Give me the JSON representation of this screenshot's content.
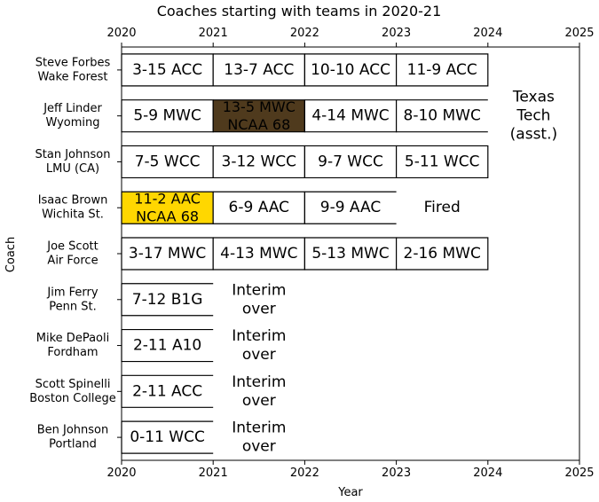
{
  "chart_data": {
    "type": "table",
    "title": "Coaches starting with teams in 2020-21",
    "xlabel": "Year",
    "ylabel": "Coach",
    "xlim": [
      2020,
      2025
    ],
    "xticks": [
      2020,
      2021,
      2022,
      2023,
      2024,
      2025
    ],
    "coaches": [
      {
        "name": "Steve Forbes",
        "team": "Wake Forest",
        "seasons": [
          {
            "start": 2020,
            "text": [
              "3-15 ACC"
            ]
          },
          {
            "start": 2021,
            "text": [
              "13-7 ACC"
            ]
          },
          {
            "start": 2022,
            "text": [
              "10-10 ACC"
            ]
          },
          {
            "start": 2023,
            "text": [
              "11-9 ACC"
            ]
          }
        ],
        "notes": []
      },
      {
        "name": "Jeff Linder",
        "team": "Wyoming",
        "seasons": [
          {
            "start": 2020,
            "text": [
              "5-9 MWC"
            ]
          },
          {
            "start": 2021,
            "text": [
              "13-5 MWC",
              "NCAA 68"
            ],
            "highlight": "#4f3a1d",
            "text_color": "#ffffff"
          },
          {
            "start": 2022,
            "text": [
              "4-14 MWC"
            ]
          },
          {
            "start": 2023,
            "text": [
              "8-10 MWC"
            ],
            "open_right": true
          }
        ],
        "notes": [
          {
            "at": 2024.5,
            "text": [
              "Texas",
              "Tech",
              "(asst.)"
            ]
          }
        ]
      },
      {
        "name": "Stan Johnson",
        "team": "LMU (CA)",
        "seasons": [
          {
            "start": 2020,
            "text": [
              "7-5 WCC"
            ]
          },
          {
            "start": 2021,
            "text": [
              "3-12 WCC"
            ]
          },
          {
            "start": 2022,
            "text": [
              "9-7 WCC"
            ]
          },
          {
            "start": 2023,
            "text": [
              "5-11 WCC"
            ]
          }
        ],
        "notes": []
      },
      {
        "name": "Isaac Brown",
        "team": "Wichita St.",
        "seasons": [
          {
            "start": 2020,
            "text": [
              "11-2 AAC",
              "NCAA 68"
            ],
            "highlight": "#ffd700"
          },
          {
            "start": 2021,
            "text": [
              "6-9 AAC"
            ]
          },
          {
            "start": 2022,
            "text": [
              "9-9 AAC"
            ],
            "open_right": true
          }
        ],
        "notes": [
          {
            "at": 2023.5,
            "text": [
              "Fired"
            ]
          }
        ]
      },
      {
        "name": "Joe Scott",
        "team": "Air Force",
        "seasons": [
          {
            "start": 2020,
            "text": [
              "3-17 MWC"
            ]
          },
          {
            "start": 2021,
            "text": [
              "4-13 MWC"
            ]
          },
          {
            "start": 2022,
            "text": [
              "5-13 MWC"
            ]
          },
          {
            "start": 2023,
            "text": [
              "2-16 MWC"
            ]
          }
        ],
        "notes": []
      },
      {
        "name": "Jim Ferry",
        "team": "Penn St.",
        "seasons": [
          {
            "start": 2020,
            "text": [
              "7-12 B1G"
            ],
            "open_right": true
          }
        ],
        "notes": [
          {
            "at": 2021.5,
            "text": [
              "Interim",
              "over"
            ]
          }
        ]
      },
      {
        "name": "Mike DePaoli",
        "team": "Fordham",
        "seasons": [
          {
            "start": 2020,
            "text": [
              "2-11 A10"
            ],
            "open_right": true
          }
        ],
        "notes": [
          {
            "at": 2021.5,
            "text": [
              "Interim",
              "over"
            ]
          }
        ]
      },
      {
        "name": "Scott Spinelli",
        "team": "Boston College",
        "seasons": [
          {
            "start": 2020,
            "text": [
              "2-11 ACC"
            ],
            "open_right": true
          }
        ],
        "notes": [
          {
            "at": 2021.5,
            "text": [
              "Interim",
              "over"
            ]
          }
        ]
      },
      {
        "name": "Ben Johnson",
        "team": "Portland",
        "seasons": [
          {
            "start": 2020,
            "text": [
              "0-11 WCC"
            ],
            "open_right": true
          }
        ],
        "notes": [
          {
            "at": 2021.5,
            "text": [
              "Interim",
              "over"
            ]
          }
        ]
      }
    ]
  }
}
